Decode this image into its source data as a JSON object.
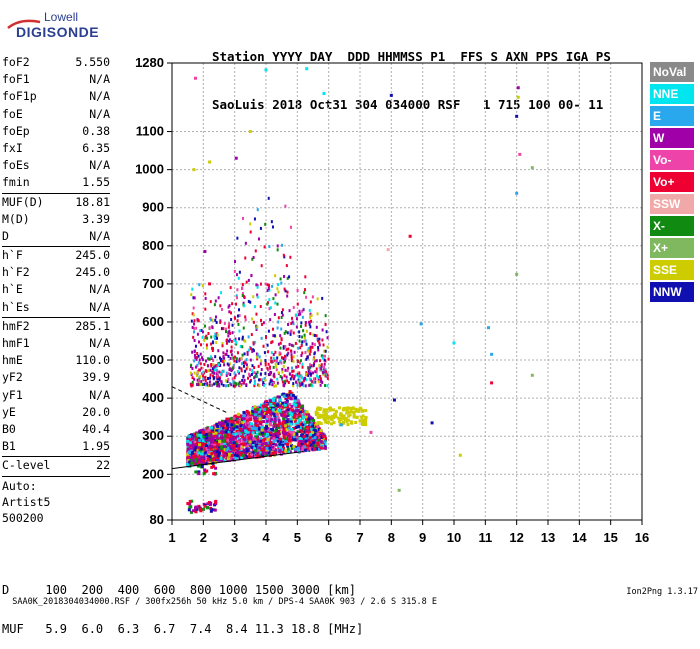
{
  "logo": {
    "line1": "Lowell",
    "line2": "DIGISONDE"
  },
  "header": {
    "line1": "Station YYYY DAY  DDD HHMMSS P1  FFS S AXN PPS IGA PS",
    "line2": "SaoLuis 2018 Oct31 304 034000 RSF   1 715 100 00- 11"
  },
  "params": [
    {
      "label": "foF2",
      "value": "5.550"
    },
    {
      "label": "foF1",
      "value": "N/A"
    },
    {
      "label": "foF1p",
      "value": "N/A"
    },
    {
      "label": "foE",
      "value": "N/A"
    },
    {
      "label": "foEp",
      "value": "0.38"
    },
    {
      "label": "fxI",
      "value": "6.35"
    },
    {
      "label": "foEs",
      "value": "N/A"
    },
    {
      "label": "fmin",
      "value": "1.55",
      "sep": true
    },
    {
      "label": "MUF(D)",
      "value": "18.81"
    },
    {
      "label": "M(D)",
      "value": "3.39"
    },
    {
      "label": "D",
      "value": "N/A",
      "sep": true
    },
    {
      "label": "h`F",
      "value": "245.0"
    },
    {
      "label": "h`F2",
      "value": "245.0"
    },
    {
      "label": "h`E",
      "value": "N/A"
    },
    {
      "label": "h`Es",
      "value": "N/A",
      "sep": true
    },
    {
      "label": "hmF2",
      "value": "285.1"
    },
    {
      "label": "hmF1",
      "value": "N/A"
    },
    {
      "label": "hmE",
      "value": "110.0"
    },
    {
      "label": "yF2",
      "value": "39.9"
    },
    {
      "label": "yF1",
      "value": "N/A"
    },
    {
      "label": "yE",
      "value": "20.0"
    },
    {
      "label": "B0",
      "value": "40.4"
    },
    {
      "label": "B1",
      "value": "1.95",
      "sep": true
    },
    {
      "label": "C-level",
      "value": "22",
      "sep": true
    }
  ],
  "auto": {
    "line1": "Auto:",
    "line2": "Artist5",
    "line3": "500200"
  },
  "legend": [
    {
      "label": "NoVal",
      "color": "#8a8a8a"
    },
    {
      "label": "NNE",
      "color": "#00e5ee"
    },
    {
      "label": "E",
      "color": "#2aa8ee"
    },
    {
      "label": "W",
      "color": "#a000a8"
    },
    {
      "label": "Vo-",
      "color": "#ee44aa"
    },
    {
      "label": "Vo+",
      "color": "#ee0033"
    },
    {
      "label": "SSW",
      "color": "#f0a8a8"
    },
    {
      "label": "X-",
      "color": "#108a10"
    },
    {
      "label": "X+",
      "color": "#80b860"
    },
    {
      "label": "SSE",
      "color": "#cccc00"
    },
    {
      "label": "NNW",
      "color": "#1010b0"
    }
  ],
  "muf": {
    "row1": "D     100  200  400  600  800 1000 1500 3000 [km]",
    "row2": "MUF   5.9  6.0  6.3  6.7  7.4  8.4 11.3 18.8 [MHz]"
  },
  "footer": {
    "text": "SAA0K_2018304034000.RSF / 300fx256h 50 kHz 5.0 km / DPS-4 SAA0K 903 / 2.6 S 315.8 E",
    "version": "Ion2Png 1.3.17"
  },
  "chart_data": {
    "type": "scatter",
    "xlim": [
      1,
      16
    ],
    "ylim": [
      80,
      1280
    ],
    "xticks": [
      1,
      2,
      3,
      4,
      5,
      6,
      7,
      8,
      9,
      10,
      11,
      12,
      13,
      14,
      15,
      16
    ],
    "yticks": [
      80,
      200,
      300,
      400,
      500,
      600,
      700,
      800,
      900,
      1000,
      1100,
      1280
    ],
    "grid": true,
    "cluster": {
      "f_range": [
        1.5,
        5.9
      ],
      "h_floor": 215,
      "h_core_top": 420
    },
    "profile_line": {
      "x": [
        1.0,
        5.2
      ],
      "y": [
        215,
        260
      ]
    },
    "dashed_line": {
      "x": [
        1.0,
        2.8
      ],
      "y": [
        430,
        360
      ]
    },
    "isolated_points": [
      {
        "x": 1.75,
        "y": 1240,
        "c": "Vo-"
      },
      {
        "x": 1.7,
        "y": 1000,
        "c": "SSE"
      },
      {
        "x": 2.2,
        "y": 1020,
        "c": "SSE"
      },
      {
        "x": 2.05,
        "y": 785,
        "c": "W"
      },
      {
        "x": 2.2,
        "y": 700,
        "c": "Vo+"
      },
      {
        "x": 4.0,
        "y": 1262,
        "c": "NNE"
      },
      {
        "x": 5.3,
        "y": 1265,
        "c": "NNE"
      },
      {
        "x": 5.85,
        "y": 1200,
        "c": "NNE"
      },
      {
        "x": 3.05,
        "y": 1030,
        "c": "W"
      },
      {
        "x": 3.5,
        "y": 1100,
        "c": "SSE"
      },
      {
        "x": 8.0,
        "y": 1195,
        "c": "NNW"
      },
      {
        "x": 8.6,
        "y": 825,
        "c": "Vo+"
      },
      {
        "x": 7.9,
        "y": 790,
        "c": "SSW"
      },
      {
        "x": 8.95,
        "y": 595,
        "c": "E"
      },
      {
        "x": 10.0,
        "y": 545,
        "c": "NNE"
      },
      {
        "x": 11.1,
        "y": 585,
        "c": "E"
      },
      {
        "x": 11.2,
        "y": 515,
        "c": "E"
      },
      {
        "x": 11.2,
        "y": 440,
        "c": "Vo+"
      },
      {
        "x": 12.05,
        "y": 1215,
        "c": "W"
      },
      {
        "x": 12.05,
        "y": 1190,
        "c": "SSE"
      },
      {
        "x": 12.0,
        "y": 938,
        "c": "E"
      },
      {
        "x": 12.0,
        "y": 1140,
        "c": "NNW"
      },
      {
        "x": 12.1,
        "y": 1040,
        "c": "Vo-"
      },
      {
        "x": 12.5,
        "y": 1005,
        "c": "X+"
      },
      {
        "x": 12.5,
        "y": 460,
        "c": "X+"
      },
      {
        "x": 12.0,
        "y": 725,
        "c": "X+"
      },
      {
        "x": 8.1,
        "y": 395,
        "c": "NNW"
      },
      {
        "x": 9.3,
        "y": 335,
        "c": "NNW"
      },
      {
        "x": 8.25,
        "y": 158,
        "c": "X+"
      },
      {
        "x": 10.2,
        "y": 250,
        "c": "SSE"
      },
      {
        "x": 7.35,
        "y": 310,
        "c": "Vo-"
      },
      {
        "x": 7.0,
        "y": 340,
        "c": "SSE"
      },
      {
        "x": 6.4,
        "y": 330,
        "c": "E"
      }
    ]
  }
}
